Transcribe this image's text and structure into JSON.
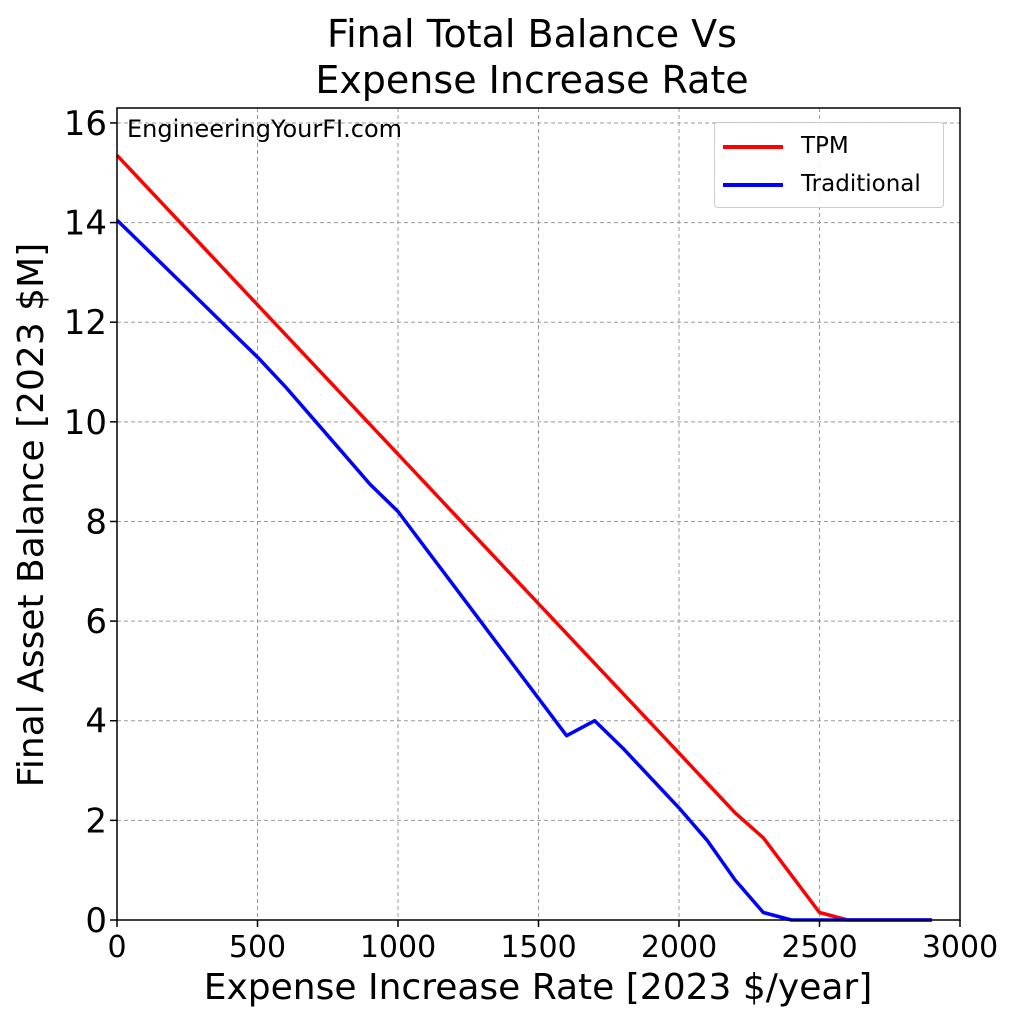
{
  "title_line1": "Final Total Balance Vs",
  "title_line2": "Expense Increase Rate",
  "watermark": "EngineeringYourFI.com",
  "chart_data": {
    "type": "line",
    "title": "Final Total Balance Vs Expense Increase Rate",
    "xlabel": "Expense Increase Rate [2023 $/year]",
    "ylabel": "Final Asset Balance [2023 $M]",
    "xlim": [
      0,
      3000
    ],
    "ylim": [
      0,
      16.3
    ],
    "xticks": [
      0,
      500,
      1000,
      1500,
      2000,
      2500,
      3000
    ],
    "yticks": [
      0,
      2,
      4,
      6,
      8,
      10,
      12,
      14,
      16
    ],
    "grid": true,
    "legend_position": "top-right",
    "series": [
      {
        "name": "TPM",
        "color": "#ff0000",
        "x": [
          0,
          100,
          200,
          300,
          400,
          500,
          600,
          700,
          800,
          900,
          1000,
          1100,
          1200,
          1300,
          1400,
          1500,
          1600,
          1700,
          1800,
          1900,
          2000,
          2100,
          2200,
          2300,
          2400,
          2500,
          2600,
          2700,
          2800,
          2900
        ],
        "y": [
          15.35,
          14.75,
          14.15,
          13.55,
          12.95,
          12.35,
          11.75,
          11.15,
          10.55,
          9.95,
          9.35,
          8.75,
          8.15,
          7.55,
          6.95,
          6.35,
          5.75,
          5.15,
          4.55,
          3.95,
          3.35,
          2.75,
          2.15,
          1.65,
          0.9,
          0.15,
          0.0,
          0.0,
          0.0,
          0.0
        ]
      },
      {
        "name": "Traditional",
        "color": "#0000ff",
        "x": [
          0,
          100,
          200,
          300,
          400,
          500,
          600,
          700,
          800,
          900,
          1000,
          1100,
          1200,
          1300,
          1400,
          1500,
          1600,
          1700,
          1800,
          1900,
          2000,
          2100,
          2200,
          2300,
          2400,
          2500,
          2600,
          2700,
          2800,
          2900
        ],
        "y": [
          14.05,
          13.5,
          12.95,
          12.4,
          11.85,
          11.3,
          10.7,
          10.05,
          9.4,
          8.75,
          8.2,
          7.45,
          6.7,
          5.95,
          5.2,
          4.45,
          3.7,
          4.0,
          3.45,
          2.85,
          2.25,
          1.6,
          0.8,
          0.15,
          0.0,
          0.0,
          0.0,
          0.0,
          0.0,
          0.0
        ]
      }
    ]
  }
}
